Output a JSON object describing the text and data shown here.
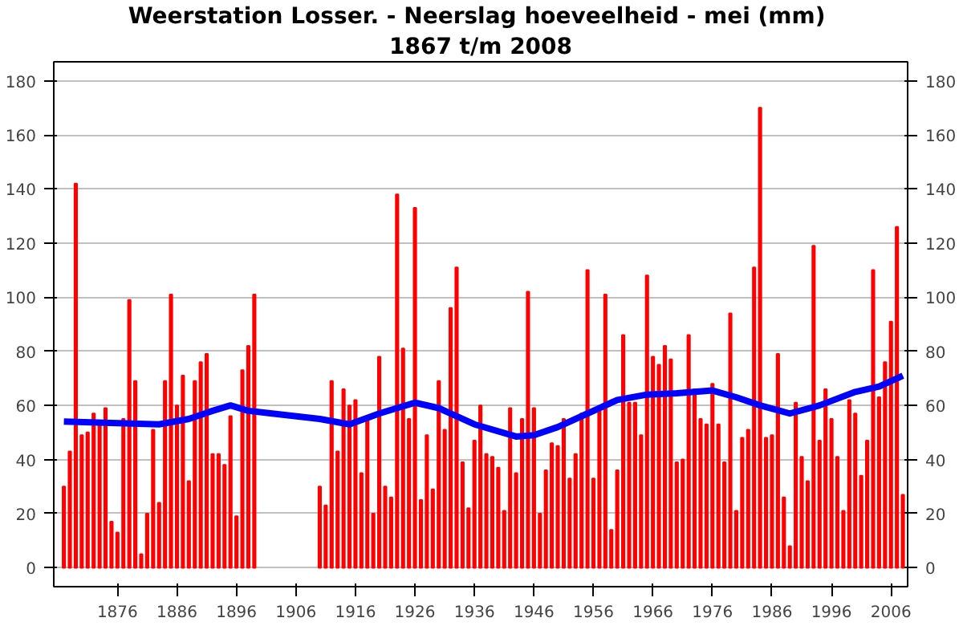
{
  "chart_data": {
    "type": "bar",
    "title": "Weerstation Losser. - Neerslag hoeveelheid - mei  (mm)",
    "subtitle": "1867 t/m 2008",
    "xlim": [
      1865.3,
      2008.8
    ],
    "xticks": [
      1876,
      1886,
      1896,
      1906,
      1916,
      1926,
      1936,
      1946,
      1956,
      1966,
      1976,
      1986,
      1996,
      2006
    ],
    "ylim": [
      -7,
      187
    ],
    "yticks": [
      0,
      20,
      40,
      60,
      80,
      100,
      120,
      140,
      160,
      180
    ],
    "y2lim": [
      -7,
      187
    ],
    "y2ticks": [
      0,
      20,
      40,
      60,
      80,
      100,
      120,
      140,
      160,
      180
    ],
    "grid": "y",
    "series": [
      {
        "color": "#ff0000",
        "x": [
          1867,
          1868,
          1869,
          1870,
          1871,
          1872,
          1873,
          1874,
          1875,
          1876,
          1877,
          1878,
          1879,
          1880,
          1881,
          1882,
          1883,
          1884,
          1885,
          1886,
          1887,
          1888,
          1889,
          1890,
          1891,
          1892,
          1893,
          1894,
          1895,
          1896,
          1897,
          1898,
          1899,
          1910,
          1911,
          1912,
          1913,
          1914,
          1915,
          1916,
          1917,
          1918,
          1919,
          1920,
          1921,
          1922,
          1923,
          1924,
          1925,
          1926,
          1927,
          1928,
          1929,
          1930,
          1931,
          1932,
          1933,
          1934,
          1935,
          1936,
          1937,
          1938,
          1939,
          1940,
          1941,
          1942,
          1943,
          1944,
          1945,
          1946,
          1947,
          1948,
          1949,
          1950,
          1951,
          1952,
          1953,
          1954,
          1955,
          1956,
          1957,
          1958,
          1959,
          1960,
          1961,
          1962,
          1963,
          1964,
          1965,
          1966,
          1967,
          1968,
          1969,
          1970,
          1971,
          1972,
          1973,
          1974,
          1975,
          1976,
          1977,
          1978,
          1979,
          1980,
          1981,
          1982,
          1983,
          1984,
          1985,
          1986,
          1987,
          1988,
          1989,
          1990,
          1991,
          1992,
          1993,
          1994,
          1995,
          1996,
          1997,
          1998,
          1999,
          2000,
          2001,
          2002,
          2003,
          2004,
          2005,
          2006,
          2007,
          2008
        ],
        "values": [
          30,
          43,
          142,
          49,
          50,
          57,
          54,
          59,
          17,
          13,
          55,
          99,
          69,
          5,
          20,
          51,
          24,
          69,
          101,
          60,
          71,
          32,
          69,
          76,
          79,
          42,
          42,
          38,
          56,
          19,
          73,
          82,
          101,
          30,
          23,
          69,
          43,
          66,
          60,
          62,
          35,
          55,
          20,
          78,
          30,
          26,
          138,
          81,
          55,
          133,
          25,
          49,
          29,
          69,
          51,
          96,
          111,
          39,
          22,
          47,
          60,
          42,
          41,
          37,
          21,
          59,
          35,
          55,
          102,
          59,
          20,
          36,
          46,
          45,
          55,
          33,
          42,
          57,
          110,
          33,
          58,
          101,
          14,
          36,
          86,
          61,
          61,
          49,
          108,
          78,
          75,
          82,
          77,
          39,
          40,
          86,
          66,
          55,
          53,
          68,
          53,
          39,
          94,
          21,
          48,
          51,
          111,
          170,
          48,
          49,
          79,
          26,
          8,
          61,
          41,
          32,
          119,
          47,
          66,
          55,
          41,
          21,
          62,
          57,
          34,
          47,
          110,
          63,
          76,
          91,
          126,
          27
        ]
      },
      {
        "type": "line",
        "color": "#0000ff",
        "x": [
          1867,
          1875,
          1883,
          1888,
          1892,
          1895,
          1898,
          1902,
          1910,
          1915,
          1920,
          1926,
          1930,
          1936,
          1943,
          1946,
          1950,
          1955,
          1960,
          1965,
          1970,
          1976,
          1980,
          1984,
          1989,
          1994,
          2000,
          2004,
          2008
        ],
        "values": [
          54,
          53.5,
          53,
          55,
          58,
          60,
          58,
          57,
          55,
          53,
          57,
          61,
          59,
          53,
          48.5,
          49,
          52,
          57,
          62,
          64,
          64.5,
          65.5,
          63,
          60,
          57,
          60,
          65,
          67,
          71
        ]
      }
    ]
  }
}
